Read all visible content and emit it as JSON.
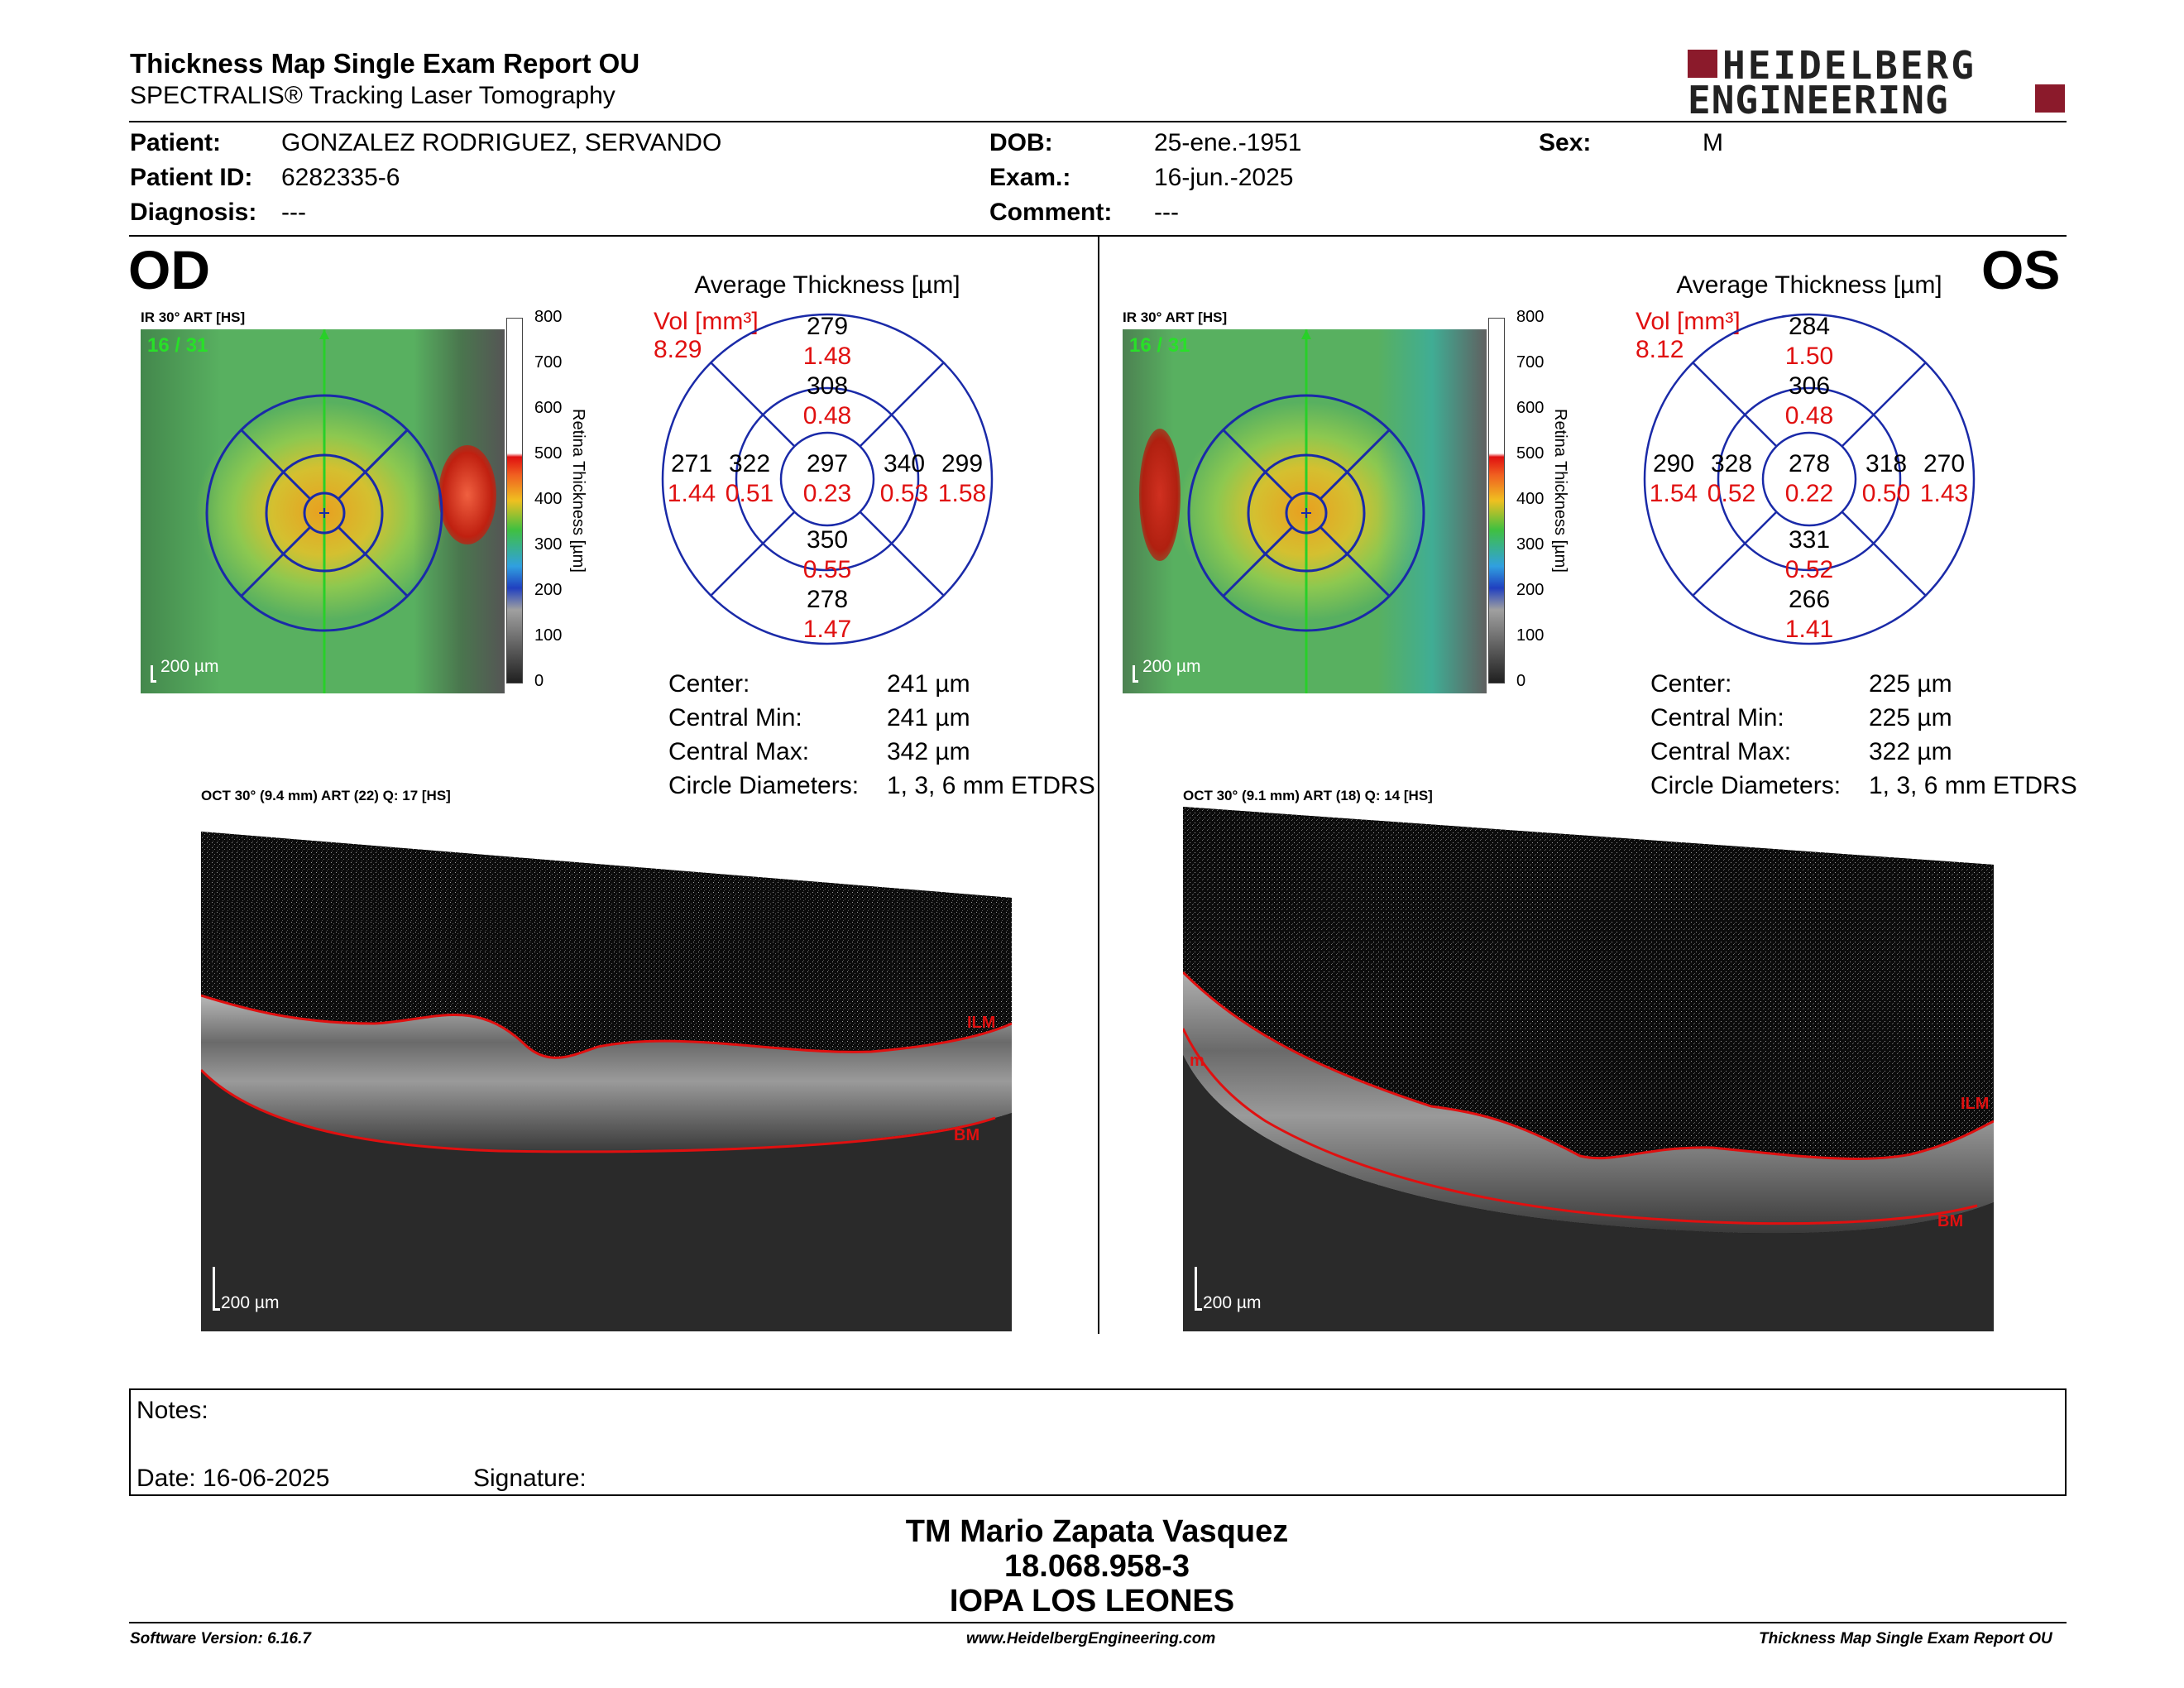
{
  "report": {
    "title": "Thickness Map Single Exam Report OU",
    "subtitle": "SPECTRALIS® Tracking Laser Tomography",
    "brand_line1": "HEIDELBERG",
    "brand_line2": "ENGINEERING"
  },
  "patient": {
    "patient_label": "Patient:",
    "patient_value": "GONZALEZ RODRIGUEZ, SERVANDO",
    "id_label": "Patient ID:",
    "id_value": "6282335-6",
    "diag_label": "Diagnosis:",
    "diag_value": "---",
    "dob_label": "DOB:",
    "dob_value": "25-ene.-1951",
    "exam_label": "Exam.:",
    "exam_value": "16-jun.-2025",
    "comment_label": "Comment:",
    "comment_value": "---",
    "sex_label": "Sex:",
    "sex_value": "M"
  },
  "od": {
    "eye": "OD",
    "ir_label": "IR 30° ART [HS]",
    "frame": "16 / 31",
    "scale": "200 µm",
    "avg_title": "Average Thickness [µm]",
    "vol_label": "Vol [mm³]",
    "vol_value": "8.29",
    "center_t": "297",
    "center_v": "0.23",
    "inner_sup_t": "308",
    "inner_sup_v": "0.48",
    "inner_inf_t": "350",
    "inner_inf_v": "0.55",
    "inner_left_t": "322",
    "inner_left_v": "0.51",
    "inner_right_t": "340",
    "inner_right_v": "0.53",
    "outer_sup_t": "279",
    "outer_sup_v": "1.48",
    "outer_inf_t": "278",
    "outer_inf_v": "1.47",
    "outer_left_t": "271",
    "outer_left_v": "1.44",
    "outer_right_t": "299",
    "outer_right_v": "1.58",
    "center_label": "Center:",
    "center_value": "241 µm",
    "cmin_label": "Central Min:",
    "cmin_value": "241 µm",
    "cmax_label": "Central Max:",
    "cmax_value": "342 µm",
    "circ_label": "Circle Diameters:",
    "circ_value": "1, 3, 6 mm ETDRS",
    "oct_label": "OCT 30° (9.4 mm) ART (22) Q: 17 [HS]",
    "ilm": "ILM",
    "bm": "BM"
  },
  "os": {
    "eye": "OS",
    "ir_label": "IR 30° ART [HS]",
    "frame": "16 / 31",
    "scale": "200 µm",
    "avg_title": "Average Thickness [µm]",
    "vol_label": "Vol [mm³]",
    "vol_value": "8.12",
    "center_t": "278",
    "center_v": "0.22",
    "inner_sup_t": "306",
    "inner_sup_v": "0.48",
    "inner_inf_t": "331",
    "inner_inf_v": "0.52",
    "inner_left_t": "328",
    "inner_left_v": "0.52",
    "inner_right_t": "318",
    "inner_right_v": "0.50",
    "outer_sup_t": "284",
    "outer_sup_v": "1.50",
    "outer_inf_t": "266",
    "outer_inf_v": "1.41",
    "outer_left_t": "290",
    "outer_left_v": "1.54",
    "outer_right_t": "270",
    "outer_right_v": "1.43",
    "center_label": "Center:",
    "center_value": "225 µm",
    "cmin_label": "Central Min:",
    "cmin_value": "225 µm",
    "cmax_label": "Central Max:",
    "cmax_value": "322 µm",
    "circ_label": "Circle Diameters:",
    "circ_value": "1, 3, 6 mm ETDRS",
    "oct_label": "OCT 30° (9.1 mm) ART (18) Q: 14 [HS]",
    "ilm": "ILM",
    "bm": "BM",
    "ilm_left": "m"
  },
  "colorbar": {
    "ticks": [
      "800",
      "700",
      "600",
      "500",
      "400",
      "300",
      "200",
      "100",
      "0"
    ],
    "label": "Retina  Thickness [µm]"
  },
  "notes": {
    "notes_label": "Notes:",
    "date_label": "Date: 16-06-2025",
    "signature_label": "Signature:"
  },
  "signer": {
    "name": "TM Mario Zapata Vasquez",
    "rut": "18.068.958-3",
    "org": "IOPA LOS LEONES"
  },
  "footer": {
    "software": "Software Version: 6.16.7",
    "website": "www.HeidelbergEngineering.com",
    "report": "Thickness Map Single Exam Report OU"
  },
  "colors": {
    "accent_red": "#e01010",
    "brand_red": "#8b1a2b",
    "circle_blue": "#1a2aa8"
  }
}
